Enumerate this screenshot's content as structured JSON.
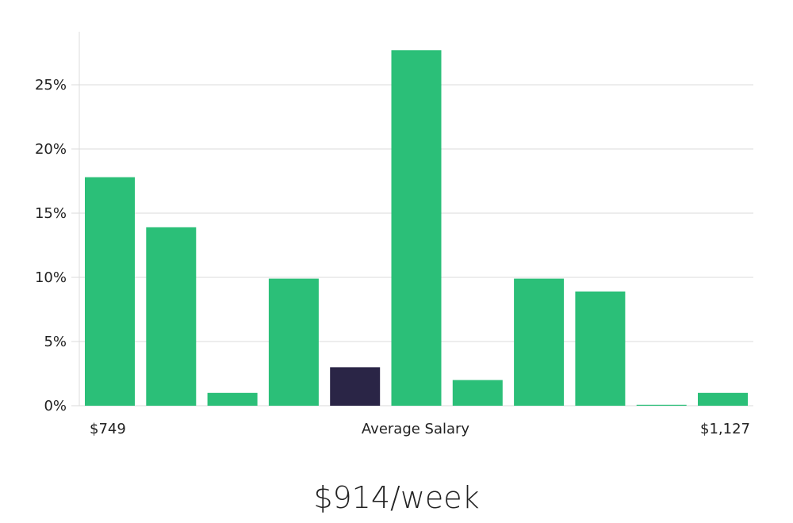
{
  "chart_data": {
    "type": "bar",
    "values": [
      17.8,
      13.9,
      1.0,
      9.9,
      3.0,
      27.7,
      2.0,
      9.9,
      8.9,
      0.05,
      1.0
    ],
    "highlight_index": 4,
    "y_tick_labels": [
      "0%",
      "5%",
      "10%",
      "15%",
      "20%",
      "25%"
    ],
    "y_ticks": [
      0,
      5,
      10,
      15,
      20,
      25
    ],
    "ylim": [
      0,
      29
    ],
    "x_left_label": "$749",
    "x_center_label": "Average Salary",
    "x_right_label": "$1,127",
    "grid": true,
    "colors": {
      "bar": "#2bbf78",
      "highlight": "#2a2546",
      "grid": "#e2e2e2",
      "axis": "#dddddd"
    }
  },
  "summary": "$914/week"
}
